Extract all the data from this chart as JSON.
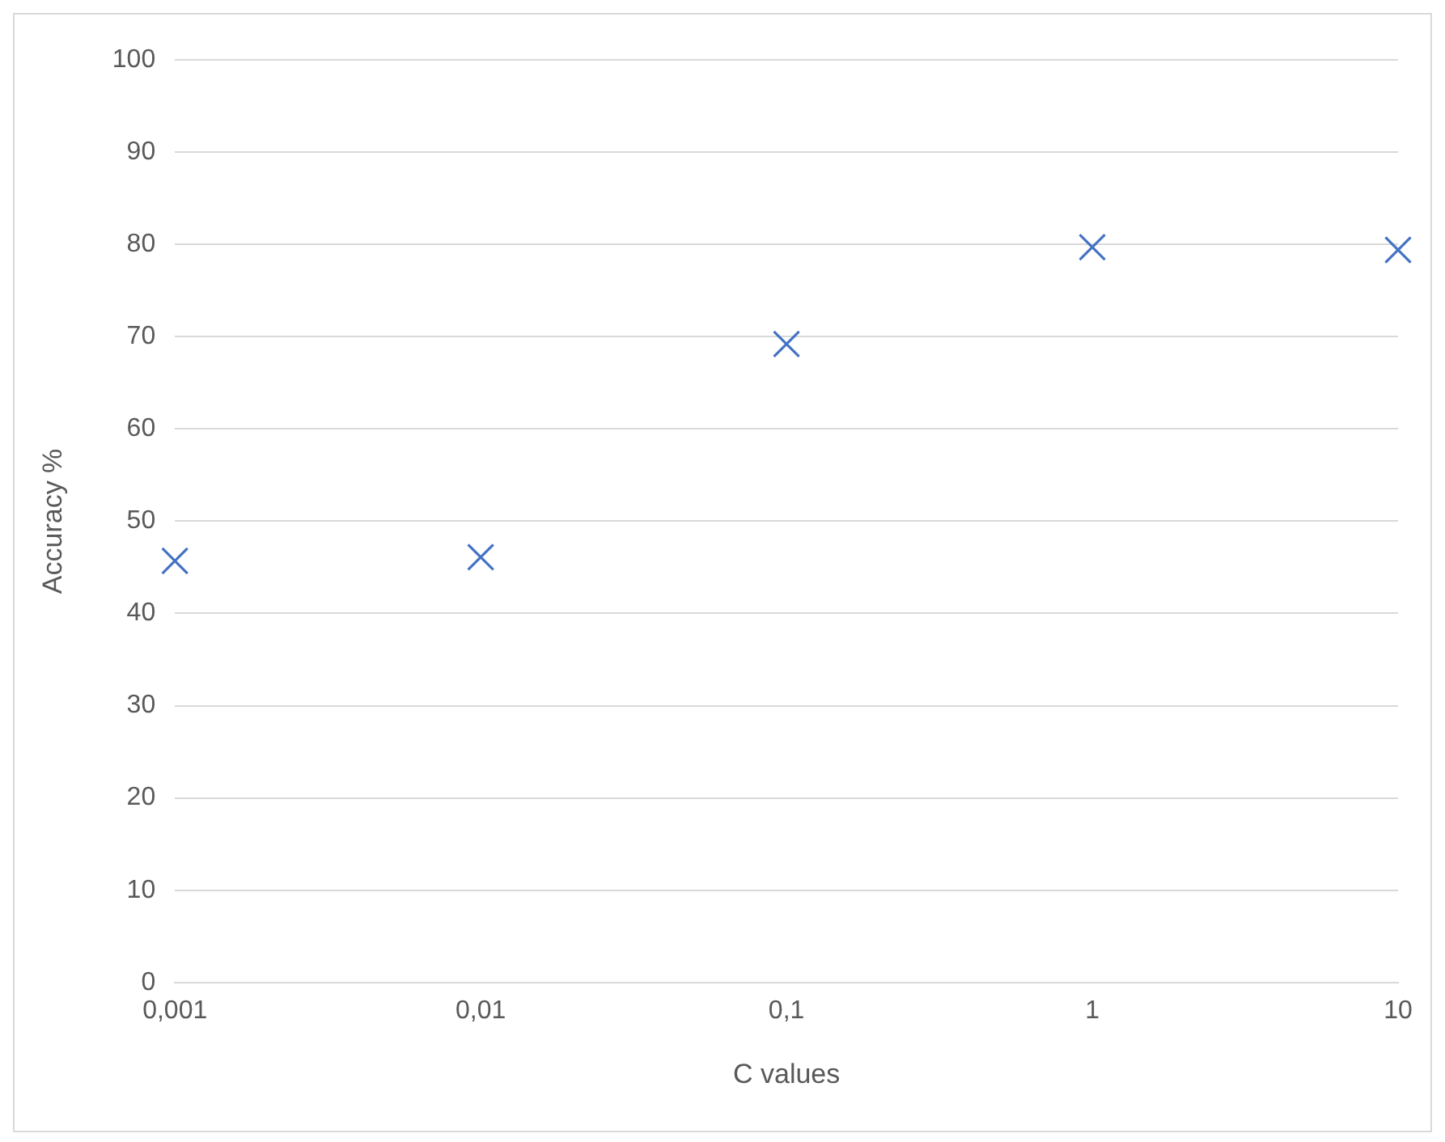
{
  "chart_data": {
    "type": "scatter",
    "xlabel": "C values",
    "ylabel": "Accuracy %",
    "log": "x",
    "x": [
      0.001,
      0.01,
      0.1,
      1,
      10
    ],
    "series": [
      {
        "color": "#4472c4",
        "values": [
          45.7,
          46.1,
          69.2,
          79.7,
          79.4
        ]
      }
    ],
    "xlim": [
      0.001,
      10
    ],
    "xticks": [
      {
        "value": 0.001,
        "label": "0,001"
      },
      {
        "value": 0.01,
        "label": "0,01"
      },
      {
        "value": 0.1,
        "label": "0,1"
      },
      1,
      10
    ],
    "ylim": [
      0,
      100
    ],
    "yticks": [
      0,
      10,
      20,
      30,
      40,
      50,
      60,
      70,
      80,
      90,
      100
    ],
    "grid": "y",
    "legend": false,
    "marker": "cross"
  }
}
